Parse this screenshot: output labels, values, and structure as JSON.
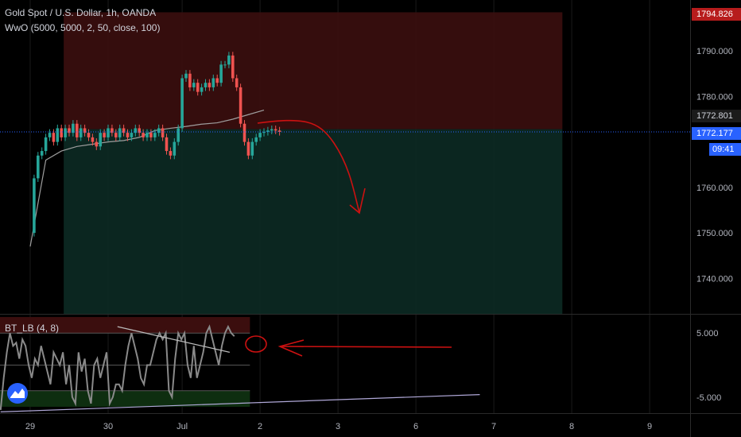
{
  "header": {
    "symbol_title": "Gold Spot / U.S. Dollar, 1h, OANDA",
    "indicator_main": "WwO (5000, 5000, 2, 50, close, 100)",
    "indicator_sub": "BT_LB (4, 8)"
  },
  "price_tags": {
    "top": "1794.826",
    "mid": "1772.801",
    "last": "1772.177",
    "countdown": "09:41"
  },
  "colors": {
    "background": "#000000",
    "bull": "#26a69a",
    "bear": "#ef5350",
    "stop_zone": "#3b0e0e",
    "target_zone": "#0c2a24",
    "last_price": "#2962ff",
    "annotation": "#cc1111",
    "osc_line": "#8a8a8a",
    "trendline": "#b0a8d8"
  },
  "chart_data": [
    {
      "type": "line",
      "title": "",
      "xlabel": "",
      "ylabel": "",
      "ylim": [
        1732.2,
        1801.2
      ],
      "x_ticks": [
        "29",
        "30",
        "Jul",
        "2",
        "3",
        "6",
        "7",
        "8",
        "9"
      ],
      "y_ticks": [
        "1790.000",
        "1780.000",
        "1770.000",
        "1760.000",
        "1750.000",
        "1740.000"
      ],
      "series": [
        {
          "x": [
            0,
            0.2,
            0.4,
            0.6,
            0.8,
            1.0,
            1.2,
            1.4,
            1.6,
            1.8,
            2.0,
            2.2,
            2.4,
            2.6,
            2.8,
            3.0
          ],
          "values": [
            1747,
            1766,
            1768,
            1769,
            1769.5,
            1770,
            1770.3,
            1771,
            1772.5,
            1773,
            1773.4,
            1773.9,
            1774.2,
            1775,
            1776,
            1777
          ]
        },
        {
          "x": [
            0,
            0.05,
            0.1,
            0.15,
            0.2,
            0.25,
            0.3,
            0.35,
            0.4,
            0.45,
            0.5,
            0.55,
            0.6,
            0.65,
            0.7,
            0.75,
            0.8,
            0.85,
            0.9,
            0.95,
            1.0,
            1.05,
            1.1,
            1.15,
            1.2,
            1.25,
            1.3,
            1.35,
            1.4,
            1.45,
            1.5,
            1.55,
            1.6,
            1.65,
            1.7,
            1.75,
            1.8,
            1.85,
            1.9,
            1.95,
            2.0,
            2.05,
            2.1,
            2.15,
            2.2,
            2.25,
            2.3,
            2.35,
            2.4,
            2.45,
            2.5,
            2.55,
            2.6,
            2.65,
            2.7,
            2.75,
            2.8,
            2.85,
            2.9,
            2.95,
            3.0,
            3.05,
            3.1,
            3.15,
            3.2
          ],
          "values": [
            1750,
            1762,
            1767,
            1768,
            1771,
            1772,
            1770,
            1773,
            1771,
            1773,
            1772,
            1774,
            1771,
            1773,
            1772,
            1771,
            1770,
            1769,
            1772,
            1771,
            1773,
            1772,
            1771,
            1773,
            1772,
            1771,
            1772,
            1773,
            1772,
            1771,
            1772,
            1771,
            1772,
            1773,
            1771,
            1768,
            1767,
            1770,
            1773,
            1784,
            1785,
            1782,
            1783,
            1781,
            1782,
            1783,
            1782,
            1784,
            1783,
            1787,
            1787,
            1789,
            1784,
            1782,
            1774,
            1770,
            1767,
            1770,
            1771,
            1772,
            1772.2,
            1772.5,
            1772.8,
            1772.5,
            1772.2
          ]
        }
      ]
    },
    {
      "type": "line",
      "title": "",
      "xlabel": "",
      "ylabel": "",
      "ylim": [
        -7.5,
        8.0
      ],
      "y_ticks": [
        "5.000",
        "-5.000"
      ],
      "series": [
        {
          "x": [
            0,
            0.04,
            0.08,
            0.12,
            0.16,
            0.2,
            0.24,
            0.28,
            0.32,
            0.36,
            0.4,
            0.44,
            0.48,
            0.52,
            0.56,
            0.6,
            0.64,
            0.68,
            0.72,
            0.76,
            0.8,
            0.84,
            0.88,
            0.92,
            0.96,
            1.0,
            1.04,
            1.08,
            1.12,
            1.16,
            1.2,
            1.24,
            1.28,
            1.32,
            1.36,
            1.4,
            1.44,
            1.48,
            1.52,
            1.56,
            1.6,
            1.64,
            1.68,
            1.72,
            1.76,
            1.8,
            1.84,
            1.88,
            1.92,
            1.96,
            2.0,
            2.04,
            2.08,
            2.12,
            2.16,
            2.2,
            2.24,
            2.28,
            2.32,
            2.36,
            2.4,
            2.44,
            2.48,
            2.52,
            2.56,
            2.6,
            2.64,
            2.68,
            2.72,
            2.76,
            2.8,
            2.84,
            2.88,
            2.92,
            2.96,
            3.0
          ],
          "values": [
            -7,
            -2,
            2,
            5,
            3,
            3.5,
            1,
            4,
            3,
            0,
            -2,
            1,
            0,
            3,
            1,
            -1,
            -3,
            2,
            1,
            0,
            2,
            -3,
            0,
            -5,
            -6,
            2,
            -1,
            1,
            -4,
            -6,
            0,
            1,
            -2,
            0,
            2,
            -6,
            -5,
            -3,
            -3,
            -4,
            0,
            3,
            5,
            3,
            1,
            -2,
            -3,
            0,
            0,
            2,
            4,
            5,
            4,
            5,
            -4,
            -5,
            1,
            5,
            4,
            5,
            0,
            -2,
            3,
            -2,
            0,
            2,
            5,
            6,
            4,
            2,
            0,
            3,
            5,
            6,
            5,
            4.5
          ]
        },
        {
          "x": [
            0,
            6.15
          ],
          "values": [
            -7.3,
            -4.6
          ]
        },
        {
          "x": [
            1.5,
            2.94
          ],
          "values": [
            6.0,
            2.0
          ]
        }
      ]
    }
  ]
}
